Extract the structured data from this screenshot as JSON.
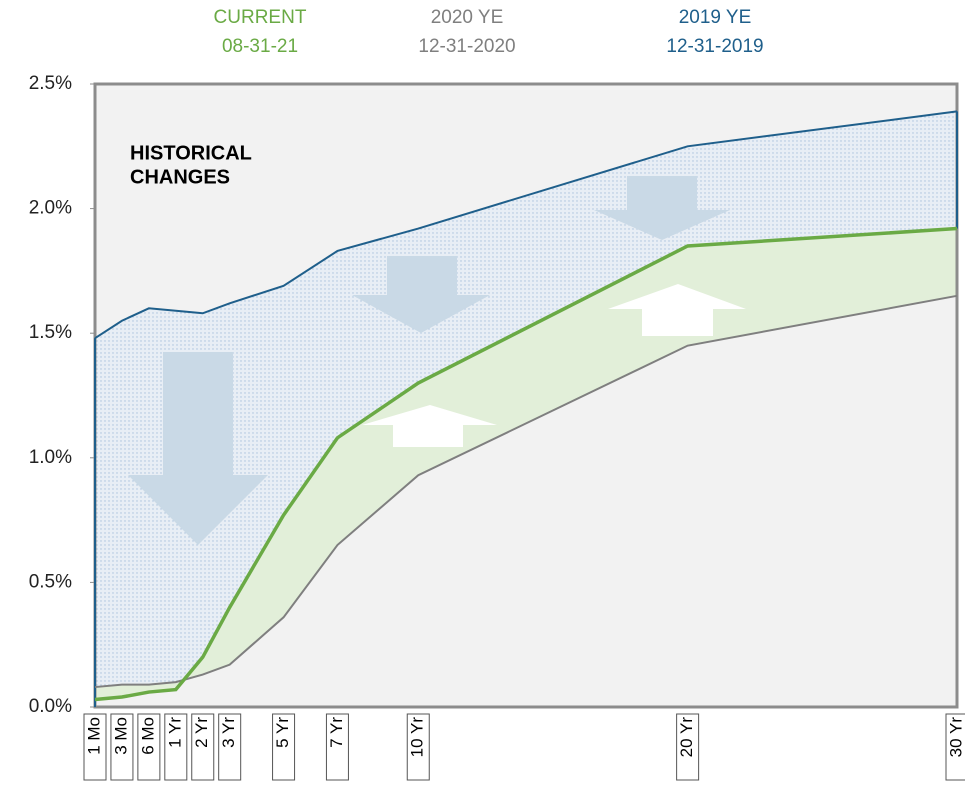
{
  "chart_data": {
    "type": "line",
    "annotation": [
      "HISTORICAL",
      "CHANGES"
    ],
    "categories": [
      "1 Mo",
      "3 Mo",
      "6 Mo",
      "1 Yr",
      "2 Yr",
      "3 Yr",
      "5 Yr",
      "7 Yr",
      "10 Yr",
      "20 Yr",
      "30 Yr"
    ],
    "series": [
      {
        "name": "2019 YE",
        "date": "12-31-2019",
        "color": "#1f5f8b",
        "values": [
          1.48,
          1.55,
          1.6,
          1.59,
          1.58,
          1.62,
          1.69,
          1.83,
          1.92,
          2.25,
          2.39
        ]
      },
      {
        "name": "2020 YE",
        "date": "12-31-2020",
        "color": "#7f7f7f",
        "values": [
          0.08,
          0.09,
          0.09,
          0.1,
          0.13,
          0.17,
          0.36,
          0.65,
          0.93,
          1.45,
          1.65
        ]
      },
      {
        "name": "CURRENT",
        "date": "08-31-21",
        "color": "#6aaa45",
        "values": [
          0.03,
          0.04,
          0.06,
          0.07,
          0.2,
          0.4,
          0.77,
          1.08,
          1.3,
          1.85,
          1.92
        ]
      }
    ],
    "ylim": [
      0,
      2.5
    ],
    "yticks": [
      {
        "value": 0,
        "label": "0.0%"
      },
      {
        "value": 0.5,
        "label": "0.5%"
      },
      {
        "value": 1,
        "label": "1.0%"
      },
      {
        "value": 1.5,
        "label": "1.5%"
      },
      {
        "value": 2,
        "label": "2.0%"
      },
      {
        "value": 2.5,
        "label": "2.5%"
      }
    ]
  }
}
